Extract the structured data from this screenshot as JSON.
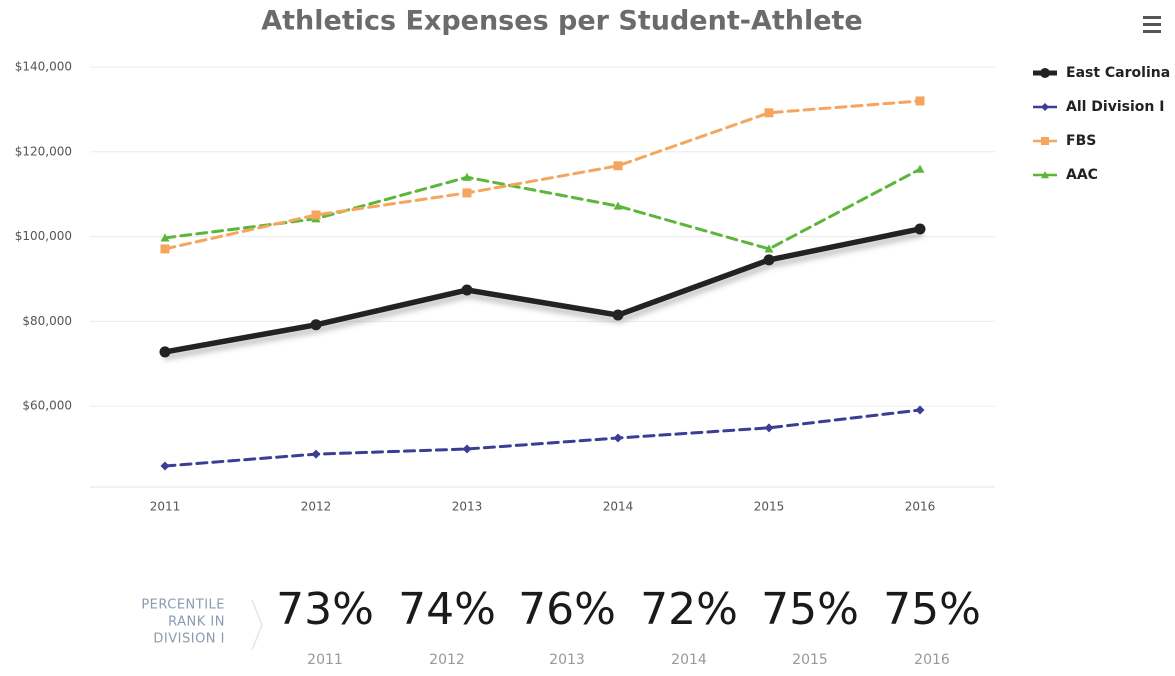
{
  "chart_data": {
    "type": "line",
    "title": "Athletics Expenses per Student-Athlete",
    "categories": [
      "2011",
      "2012",
      "2013",
      "2014",
      "2015",
      "2016"
    ],
    "series": [
      {
        "name": "East Carolina",
        "color": "#222222",
        "marker": "circle",
        "dashed": false,
        "values": [
          72800,
          79200,
          87400,
          81500,
          94500,
          101800
        ]
      },
      {
        "name": "All Division I",
        "color": "#3b3e93",
        "marker": "diamond",
        "dashed": true,
        "values": [
          45900,
          48700,
          49900,
          52500,
          54900,
          59100
        ]
      },
      {
        "name": "FBS",
        "color": "#f4a65e",
        "marker": "square",
        "dashed": true,
        "values": [
          97100,
          105100,
          110300,
          116700,
          129200,
          132000
        ]
      },
      {
        "name": "AAC",
        "color": "#5bb63a",
        "marker": "triangle",
        "dashed": true,
        "values": [
          99700,
          104200,
          114000,
          107200,
          97100,
          115900
        ]
      }
    ],
    "ylim": [
      40000,
      140000
    ],
    "yticks": [
      {
        "value": 60000,
        "label": "$60,000"
      },
      {
        "value": 80000,
        "label": "$80,000"
      },
      {
        "value": 100000,
        "label": "$100,000"
      },
      {
        "value": 120000,
        "label": "$120,000"
      },
      {
        "value": 140000,
        "label": "$140,000"
      }
    ],
    "grid": true,
    "legend": "right"
  },
  "percentile": {
    "label_lines": [
      "PERCENTILE",
      "RANK IN",
      "DIVISION I"
    ],
    "ranks": [
      "73%",
      "74%",
      "76%",
      "72%",
      "75%",
      "75%"
    ],
    "years": [
      "2011",
      "2012",
      "2013",
      "2014",
      "2015",
      "2016"
    ]
  }
}
